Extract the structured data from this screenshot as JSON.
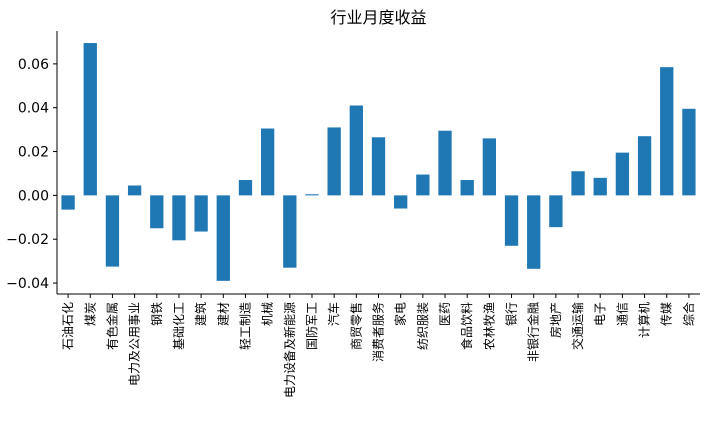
{
  "chart_data": {
    "type": "bar",
    "title": "行业月度收益",
    "xlabel": "",
    "ylabel": "",
    "ylim": [
      -0.045,
      0.075
    ],
    "yticks": [
      -0.04,
      -0.02,
      0.0,
      0.02,
      0.04,
      0.06
    ],
    "ytick_labels": [
      "−0.04",
      "−0.02",
      "0.00",
      "0.02",
      "0.04",
      "0.06"
    ],
    "bar_color": "#1f77b4",
    "grid": false,
    "categories": [
      "石油石化",
      "煤炭",
      "有色金属",
      "电力及公用事业",
      "钢铁",
      "基础化工",
      "建筑",
      "建材",
      "轻工制造",
      "机械",
      "电力设备及新能源",
      "国防军工",
      "汽车",
      "商贸零售",
      "消费者服务",
      "家电",
      "纺织服装",
      "医药",
      "食品饮料",
      "农林牧渔",
      "银行",
      "非银行金融",
      "房地产",
      "交通运输",
      "电子",
      "通信",
      "计算机",
      "传媒",
      "综合"
    ],
    "values": [
      -0.0065,
      0.0695,
      -0.0325,
      0.0045,
      -0.015,
      -0.0205,
      -0.0165,
      -0.039,
      0.007,
      0.0305,
      -0.033,
      0.0005,
      0.031,
      0.041,
      0.0265,
      -0.006,
      0.0095,
      0.0295,
      0.007,
      0.026,
      -0.023,
      -0.0335,
      -0.0145,
      0.011,
      0.008,
      0.0195,
      0.027,
      0.0585,
      0.0395
    ]
  }
}
